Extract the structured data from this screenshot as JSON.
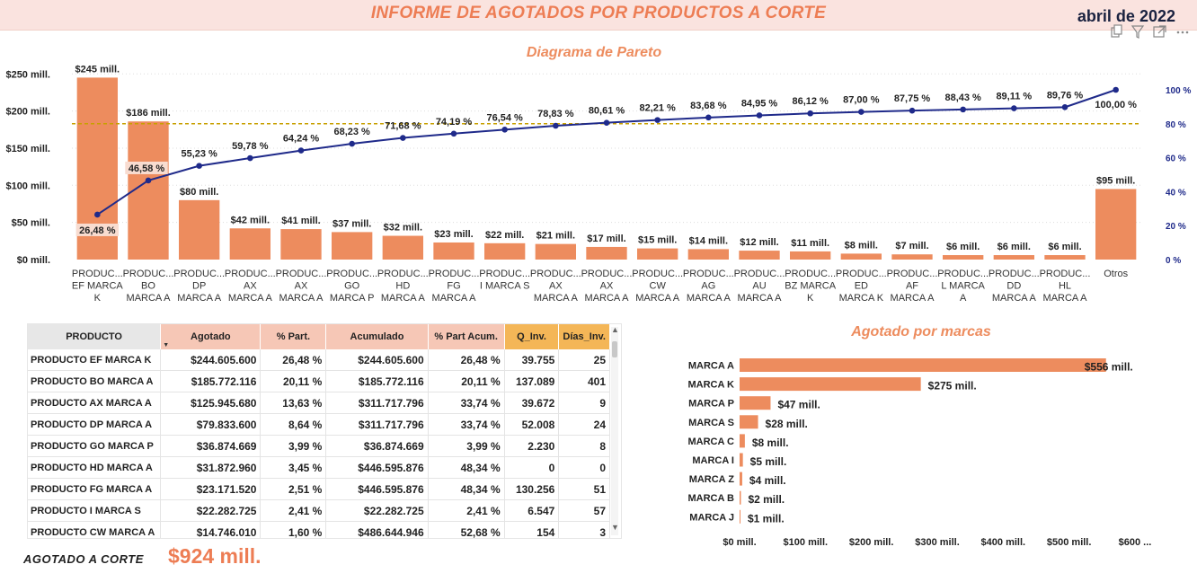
{
  "header": {
    "title": "INFORME DE AGOTADOS POR PRODUCTOS A CORTE",
    "date": "abril de 2022"
  },
  "icons": [
    "copy-icon",
    "filter-icon",
    "focus-mode-icon",
    "more-options-icon"
  ],
  "colors": {
    "bar": "#ed8c5e",
    "line": "#1f2a8a",
    "reference": "#c8a000",
    "accent": "#ed7d54"
  },
  "chart_data": [
    {
      "type": "bar",
      "title": "Diagrama de Pareto",
      "categories": [
        [
          "PRODUC...",
          "EF MARCA",
          "K"
        ],
        [
          "PRODUC...",
          "BO",
          "MARCA A"
        ],
        [
          "PRODUC...",
          "DP",
          "MARCA A"
        ],
        [
          "PRODUC...",
          "AX",
          "MARCA A"
        ],
        [
          "PRODUC...",
          "AX",
          "MARCA A"
        ],
        [
          "PRODUC...",
          "GO",
          "MARCA P"
        ],
        [
          "PRODUC...",
          "HD",
          "MARCA A"
        ],
        [
          "PRODUC...",
          "FG",
          "MARCA A"
        ],
        [
          "PRODUC...",
          "I MARCA S"
        ],
        [
          "PRODUC...",
          "AX",
          "MARCA A"
        ],
        [
          "PRODUC...",
          "AX",
          "MARCA A"
        ],
        [
          "PRODUC...",
          "CW",
          "MARCA A"
        ],
        [
          "PRODUC...",
          "AG",
          "MARCA A"
        ],
        [
          "PRODUC...",
          "AU",
          "MARCA A"
        ],
        [
          "PRODUC...",
          "BZ MARCA",
          "K"
        ],
        [
          "PRODUC...",
          "ED",
          "MARCA K"
        ],
        [
          "PRODUC...",
          "AF",
          "MARCA A"
        ],
        [
          "PRODUC...",
          "L MARCA",
          "A"
        ],
        [
          "PRODUC...",
          "DD",
          "MARCA A"
        ],
        [
          "PRODUC...",
          "HL",
          "MARCA A"
        ],
        [
          "Otros"
        ]
      ],
      "values": [
        245,
        186,
        80,
        42,
        41,
        37,
        32,
        23,
        22,
        21,
        17,
        15,
        14,
        12,
        11,
        8,
        7,
        6,
        6,
        6,
        95
      ],
      "value_labels": [
        "$245 mill.",
        "$186 mill.",
        "$80 mill.",
        "$42 mill.",
        "$41 mill.",
        "$37 mill.",
        "$32 mill.",
        "$23 mill.",
        "$22 mill.",
        "$21 mill.",
        "$17 mill.",
        "$15 mill.",
        "$14 mill.",
        "$12 mill.",
        "$11 mill.",
        "$8 mill.",
        "$7 mill.",
        "$6 mill.",
        "$6 mill.",
        "$6 mill.",
        "$95 mill."
      ],
      "cumulative_pct": [
        26.48,
        46.58,
        55.23,
        59.78,
        64.24,
        68.23,
        71.68,
        74.19,
        76.54,
        78.83,
        80.61,
        82.21,
        83.68,
        84.95,
        86.12,
        87.0,
        87.75,
        88.43,
        89.11,
        89.76,
        100.0
      ],
      "cumulative_labels": [
        "26,48 %",
        "46,58 %",
        "55,23 %",
        "59,78 %",
        "64,24 %",
        "68,23 %",
        "71,68 %",
        "74,19 %",
        "76,54 %",
        "78,83 %",
        "80,61 %",
        "82,21 %",
        "83,68 %",
        "84,95 %",
        "86,12 %",
        "87,00 %",
        "87,75 %",
        "88,43 %",
        "89,11 %",
        "89,76 %",
        "100,00 %"
      ],
      "reference_line_pct": 80,
      "ylim": [
        0,
        260
      ],
      "yticks": [
        0,
        50,
        100,
        150,
        200,
        250
      ],
      "ytick_labels": [
        "$0 mill.",
        "$50 mill.",
        "$100 mill.",
        "$150 mill.",
        "$200 mill.",
        "$250 mill."
      ],
      "y2lim": [
        0,
        100
      ],
      "y2ticks": [
        0,
        20,
        40,
        60,
        80,
        100
      ],
      "y2tick_labels": [
        "0 %",
        "20 %",
        "40 %",
        "60 %",
        "80 %",
        "100 %"
      ],
      "grid": true
    },
    {
      "type": "bar",
      "orientation": "horizontal",
      "title": "Agotado por marcas",
      "categories": [
        "MARCA A",
        "MARCA K",
        "MARCA P",
        "MARCA S",
        "MARCA C",
        "MARCA I",
        "MARCA Z",
        "MARCA B",
        "MARCA J"
      ],
      "values": [
        556,
        275,
        47,
        28,
        8,
        5,
        4,
        2,
        1
      ],
      "value_labels": [
        "$556 mill.",
        "$275 mill.",
        "$47 mill.",
        "$28 mill.",
        "$8 mill.",
        "$5 mill.",
        "$4 mill.",
        "$2 mill.",
        "$1 mill."
      ],
      "xlim": [
        0,
        600
      ],
      "xticks": [
        0,
        100,
        200,
        300,
        400,
        500,
        600
      ],
      "xtick_labels": [
        "$0 mill.",
        "$100 mill.",
        "$200 mill.",
        "$300 mill.",
        "$400 mill.",
        "$500 mill.",
        "$600 ..."
      ]
    }
  ],
  "table": {
    "columns": [
      "PRODUCTO",
      "Agotado",
      "% Part.",
      "Acumulado",
      "% Part Acum.",
      "Q_Inv.",
      "Días_Inv."
    ],
    "rows": [
      [
        "PRODUCTO EF MARCA K",
        "$244.605.600",
        "26,48 %",
        "$244.605.600",
        "26,48 %",
        "39.755",
        "25"
      ],
      [
        "PRODUCTO BO MARCA A",
        "$185.772.116",
        "20,11 %",
        "$185.772.116",
        "20,11 %",
        "137.089",
        "401"
      ],
      [
        "PRODUCTO AX MARCA A",
        "$125.945.680",
        "13,63 %",
        "$311.717.796",
        "33,74 %",
        "39.672",
        "9"
      ],
      [
        "PRODUCTO DP MARCA A",
        "$79.833.600",
        "8,64 %",
        "$311.717.796",
        "33,74 %",
        "52.008",
        "24"
      ],
      [
        "PRODUCTO GO MARCA P",
        "$36.874.669",
        "3,99 %",
        "$36.874.669",
        "3,99 %",
        "2.230",
        "8"
      ],
      [
        "PRODUCTO HD MARCA A",
        "$31.872.960",
        "3,45 %",
        "$446.595.876",
        "48,34 %",
        "0",
        "0"
      ],
      [
        "PRODUCTO FG MARCA A",
        "$23.171.520",
        "2,51 %",
        "$446.595.876",
        "48,34 %",
        "130.256",
        "51"
      ],
      [
        "PRODUCTO I MARCA S",
        "$22.282.725",
        "2,41 %",
        "$22.282.725",
        "2,41 %",
        "6.547",
        "57"
      ],
      [
        "PRODUCTO CW MARCA A",
        "$14.746.010",
        "1,60 %",
        "$486.644.946",
        "52,68 %",
        "154",
        "3"
      ]
    ]
  },
  "kpi": {
    "label": "AGOTADO A CORTE",
    "value": "$924 mill."
  }
}
